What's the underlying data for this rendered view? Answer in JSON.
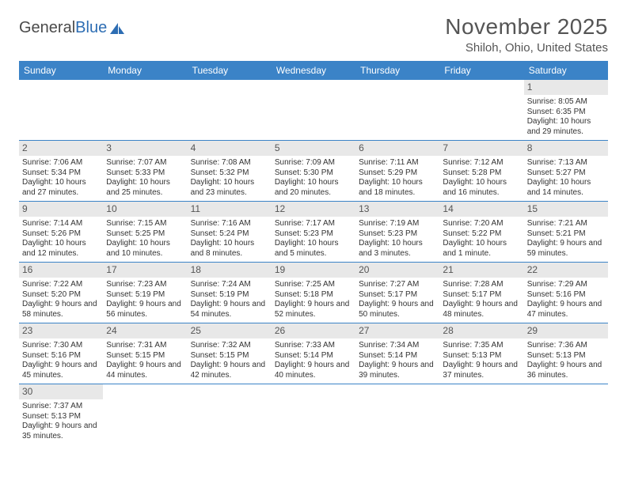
{
  "brand": {
    "part1": "General",
    "part2": "Blue"
  },
  "title": "November 2025",
  "location": "Shiloh, Ohio, United States",
  "colors": {
    "header_bg": "#3b83c7",
    "daynum_bg": "#e8e8e8",
    "border": "#3b83c7",
    "text": "#333333",
    "title_text": "#555555"
  },
  "day_names": [
    "Sunday",
    "Monday",
    "Tuesday",
    "Wednesday",
    "Thursday",
    "Friday",
    "Saturday"
  ],
  "weeks": [
    [
      null,
      null,
      null,
      null,
      null,
      null,
      {
        "n": "1",
        "sr": "Sunrise: 8:05 AM",
        "ss": "Sunset: 6:35 PM",
        "dl": "Daylight: 10 hours and 29 minutes."
      }
    ],
    [
      {
        "n": "2",
        "sr": "Sunrise: 7:06 AM",
        "ss": "Sunset: 5:34 PM",
        "dl": "Daylight: 10 hours and 27 minutes."
      },
      {
        "n": "3",
        "sr": "Sunrise: 7:07 AM",
        "ss": "Sunset: 5:33 PM",
        "dl": "Daylight: 10 hours and 25 minutes."
      },
      {
        "n": "4",
        "sr": "Sunrise: 7:08 AM",
        "ss": "Sunset: 5:32 PM",
        "dl": "Daylight: 10 hours and 23 minutes."
      },
      {
        "n": "5",
        "sr": "Sunrise: 7:09 AM",
        "ss": "Sunset: 5:30 PM",
        "dl": "Daylight: 10 hours and 20 minutes."
      },
      {
        "n": "6",
        "sr": "Sunrise: 7:11 AM",
        "ss": "Sunset: 5:29 PM",
        "dl": "Daylight: 10 hours and 18 minutes."
      },
      {
        "n": "7",
        "sr": "Sunrise: 7:12 AM",
        "ss": "Sunset: 5:28 PM",
        "dl": "Daylight: 10 hours and 16 minutes."
      },
      {
        "n": "8",
        "sr": "Sunrise: 7:13 AM",
        "ss": "Sunset: 5:27 PM",
        "dl": "Daylight: 10 hours and 14 minutes."
      }
    ],
    [
      {
        "n": "9",
        "sr": "Sunrise: 7:14 AM",
        "ss": "Sunset: 5:26 PM",
        "dl": "Daylight: 10 hours and 12 minutes."
      },
      {
        "n": "10",
        "sr": "Sunrise: 7:15 AM",
        "ss": "Sunset: 5:25 PM",
        "dl": "Daylight: 10 hours and 10 minutes."
      },
      {
        "n": "11",
        "sr": "Sunrise: 7:16 AM",
        "ss": "Sunset: 5:24 PM",
        "dl": "Daylight: 10 hours and 8 minutes."
      },
      {
        "n": "12",
        "sr": "Sunrise: 7:17 AM",
        "ss": "Sunset: 5:23 PM",
        "dl": "Daylight: 10 hours and 5 minutes."
      },
      {
        "n": "13",
        "sr": "Sunrise: 7:19 AM",
        "ss": "Sunset: 5:23 PM",
        "dl": "Daylight: 10 hours and 3 minutes."
      },
      {
        "n": "14",
        "sr": "Sunrise: 7:20 AM",
        "ss": "Sunset: 5:22 PM",
        "dl": "Daylight: 10 hours and 1 minute."
      },
      {
        "n": "15",
        "sr": "Sunrise: 7:21 AM",
        "ss": "Sunset: 5:21 PM",
        "dl": "Daylight: 9 hours and 59 minutes."
      }
    ],
    [
      {
        "n": "16",
        "sr": "Sunrise: 7:22 AM",
        "ss": "Sunset: 5:20 PM",
        "dl": "Daylight: 9 hours and 58 minutes."
      },
      {
        "n": "17",
        "sr": "Sunrise: 7:23 AM",
        "ss": "Sunset: 5:19 PM",
        "dl": "Daylight: 9 hours and 56 minutes."
      },
      {
        "n": "18",
        "sr": "Sunrise: 7:24 AM",
        "ss": "Sunset: 5:19 PM",
        "dl": "Daylight: 9 hours and 54 minutes."
      },
      {
        "n": "19",
        "sr": "Sunrise: 7:25 AM",
        "ss": "Sunset: 5:18 PM",
        "dl": "Daylight: 9 hours and 52 minutes."
      },
      {
        "n": "20",
        "sr": "Sunrise: 7:27 AM",
        "ss": "Sunset: 5:17 PM",
        "dl": "Daylight: 9 hours and 50 minutes."
      },
      {
        "n": "21",
        "sr": "Sunrise: 7:28 AM",
        "ss": "Sunset: 5:17 PM",
        "dl": "Daylight: 9 hours and 48 minutes."
      },
      {
        "n": "22",
        "sr": "Sunrise: 7:29 AM",
        "ss": "Sunset: 5:16 PM",
        "dl": "Daylight: 9 hours and 47 minutes."
      }
    ],
    [
      {
        "n": "23",
        "sr": "Sunrise: 7:30 AM",
        "ss": "Sunset: 5:16 PM",
        "dl": "Daylight: 9 hours and 45 minutes."
      },
      {
        "n": "24",
        "sr": "Sunrise: 7:31 AM",
        "ss": "Sunset: 5:15 PM",
        "dl": "Daylight: 9 hours and 44 minutes."
      },
      {
        "n": "25",
        "sr": "Sunrise: 7:32 AM",
        "ss": "Sunset: 5:15 PM",
        "dl": "Daylight: 9 hours and 42 minutes."
      },
      {
        "n": "26",
        "sr": "Sunrise: 7:33 AM",
        "ss": "Sunset: 5:14 PM",
        "dl": "Daylight: 9 hours and 40 minutes."
      },
      {
        "n": "27",
        "sr": "Sunrise: 7:34 AM",
        "ss": "Sunset: 5:14 PM",
        "dl": "Daylight: 9 hours and 39 minutes."
      },
      {
        "n": "28",
        "sr": "Sunrise: 7:35 AM",
        "ss": "Sunset: 5:13 PM",
        "dl": "Daylight: 9 hours and 37 minutes."
      },
      {
        "n": "29",
        "sr": "Sunrise: 7:36 AM",
        "ss": "Sunset: 5:13 PM",
        "dl": "Daylight: 9 hours and 36 minutes."
      }
    ],
    [
      {
        "n": "30",
        "sr": "Sunrise: 7:37 AM",
        "ss": "Sunset: 5:13 PM",
        "dl": "Daylight: 9 hours and 35 minutes."
      },
      null,
      null,
      null,
      null,
      null,
      null
    ]
  ]
}
